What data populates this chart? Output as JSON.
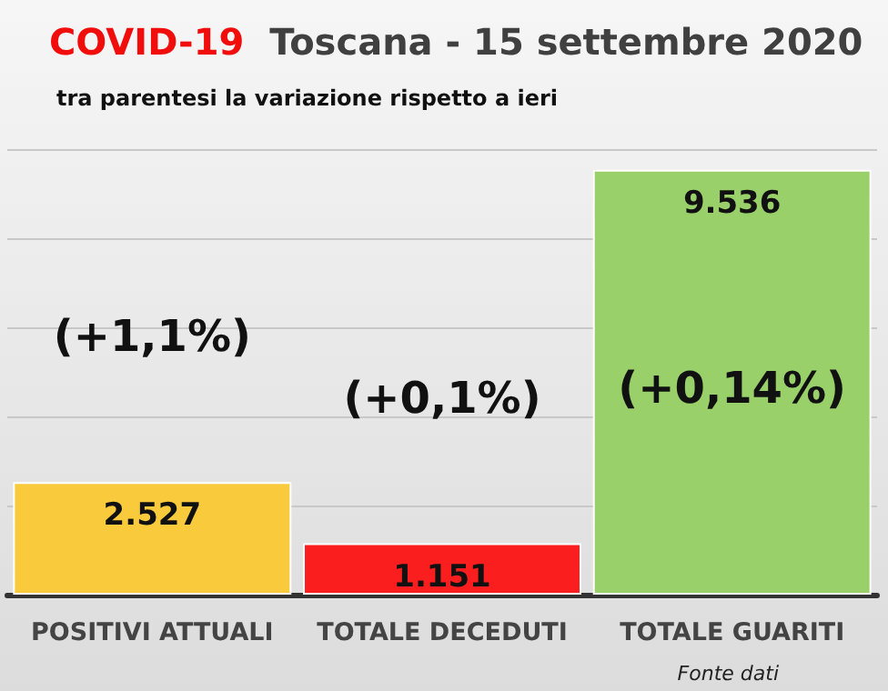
{
  "chart_data": {
    "type": "bar",
    "title": "COVID-19  Toscana - 15 settembre 2020",
    "subtitle": "tra parentesi la variazione rispetto a ieri",
    "categories": [
      "POSITIVI ATTUALI",
      "TOTALE DECEDUTI",
      "TOTALE GUARITI"
    ],
    "values": [
      2527,
      1151,
      9536
    ],
    "colors": [
      "#f9cb3c",
      "#fa1e1e",
      "#99d06a"
    ],
    "value_labels": [
      "2.527",
      "1.151",
      "9.536"
    ],
    "annotations": [
      "(+1,1%)",
      "(+0,1%)",
      "(+0,14%)",
      "Fonte dati"
    ],
    "grid": "y"
  }
}
